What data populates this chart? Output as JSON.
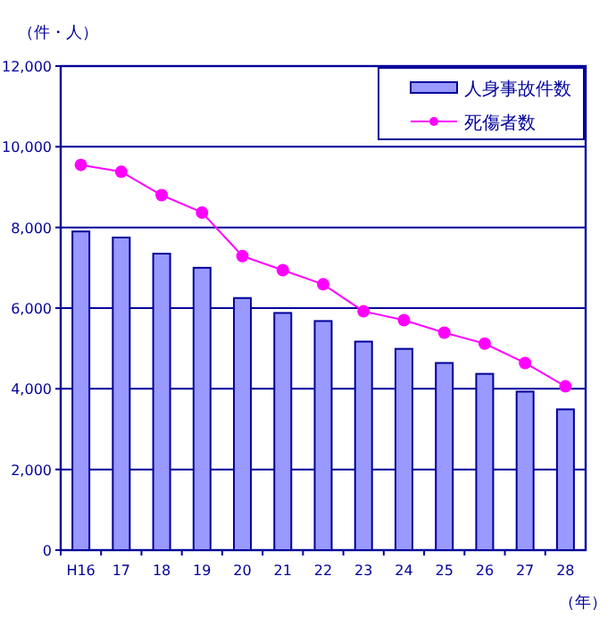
{
  "chart_data": {
    "type": "bar",
    "ylabel": "（件・人）",
    "xlabel": "（年）",
    "categories": [
      "H16",
      "17",
      "18",
      "19",
      "20",
      "21",
      "22",
      "23",
      "24",
      "25",
      "26",
      "27",
      "28"
    ],
    "series": [
      {
        "name": "人身事故件数",
        "color": "#9999ff",
        "values": [
          7900,
          7750,
          7350,
          7000,
          6250,
          5880,
          5680,
          5170,
          4990,
          4640,
          4370,
          3930,
          3490
        ]
      },
      {
        "name": "死傷者数",
        "type": "line",
        "color": "#ff00ff",
        "marker": "circle",
        "values": [
          9550,
          9380,
          8800,
          8370,
          7290,
          6940,
          6590,
          5920,
          5700,
          5390,
          5120,
          4640,
          4060
        ]
      }
    ],
    "ylim": [
      0,
      12000
    ],
    "yticks": [
      {
        "value": 0,
        "label": "0"
      },
      {
        "value": 2000,
        "label": "2,000"
      },
      {
        "value": 4000,
        "label": "4,000"
      },
      {
        "value": 6000,
        "label": "6,000"
      },
      {
        "value": 8000,
        "label": "8,000"
      },
      {
        "value": 10000,
        "label": "10,000"
      },
      {
        "value": 12000,
        "label": "12,000"
      }
    ],
    "grid": "y",
    "legend": "top right"
  }
}
